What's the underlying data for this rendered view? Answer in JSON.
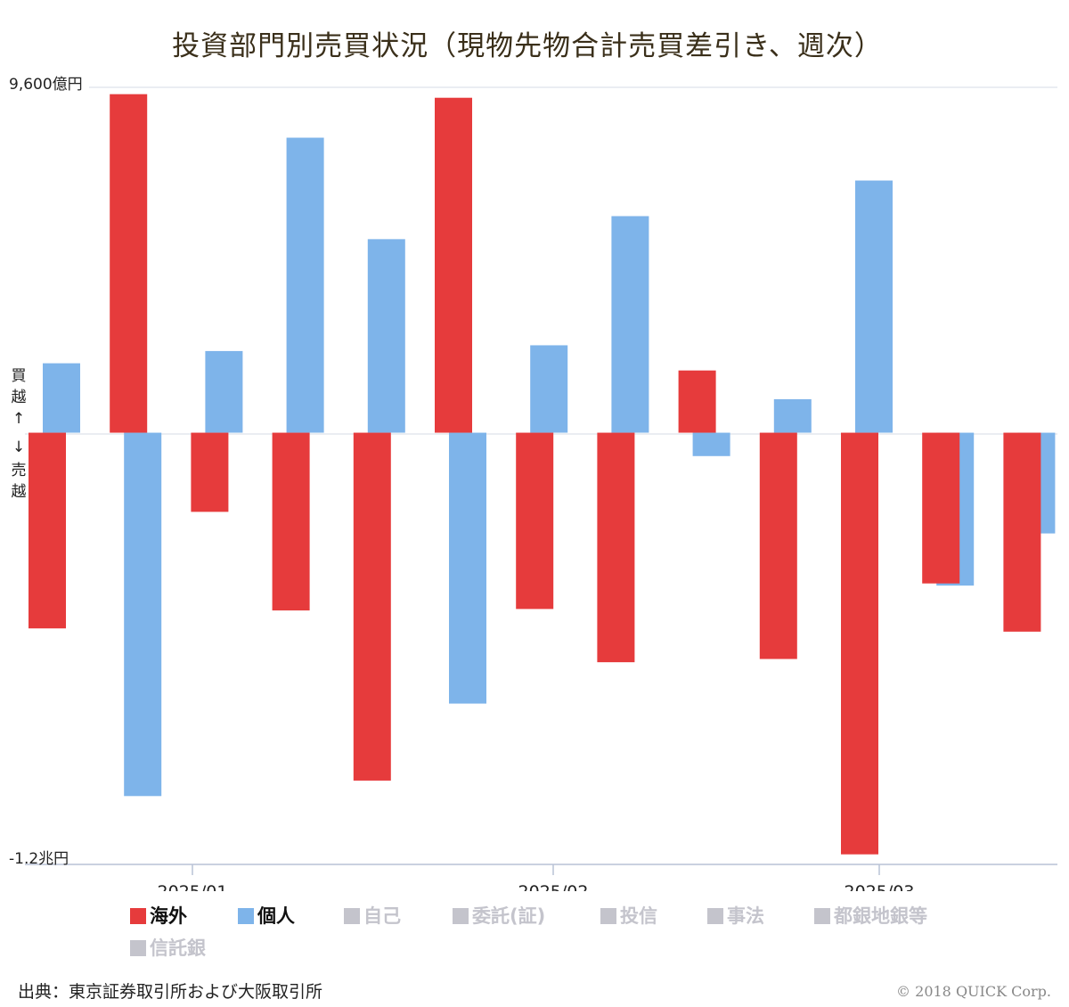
{
  "chart_data": {
    "type": "bar",
    "title": "投資部門別売買状況（現物先物合計売買差引き、週次）",
    "ylabel_top": "9,600億円",
    "ylabel_bottom": "-1.2兆円",
    "ylim": [
      -12000,
      9600
    ],
    "unit": "億円",
    "buy_label": "買越",
    "buy_arrow": "↑",
    "sell_arrow": "↓",
    "sell_label": "売越",
    "x_ticks": [
      "2025/01",
      "2025/02",
      "2025/03"
    ],
    "series": [
      {
        "name": "海外",
        "color": "#e63b3c",
        "values": [
          -5440,
          9410,
          -2200,
          -4940,
          -9670,
          9310,
          -4900,
          -6380,
          1730,
          -6290,
          -11720,
          -4190,
          -5530
        ]
      },
      {
        "name": "個人",
        "color": "#7eb4ea",
        "values": [
          1930,
          -10100,
          2270,
          8200,
          5380,
          -7530,
          2430,
          6020,
          -650,
          930,
          7010,
          -4250,
          -2800
        ]
      }
    ],
    "legend": [
      {
        "name": "海外",
        "active": true,
        "color": "#e63b3c"
      },
      {
        "name": "個人",
        "active": true,
        "color": "#7eb4ea"
      },
      {
        "name": "自己",
        "active": false,
        "color": "#c4c4cc"
      },
      {
        "name": "委託(証)",
        "active": false,
        "color": "#c4c4cc"
      },
      {
        "name": "投信",
        "active": false,
        "color": "#c4c4cc"
      },
      {
        "name": "事法",
        "active": false,
        "color": "#c4c4cc"
      },
      {
        "name": "都銀地銀等",
        "active": false,
        "color": "#c4c4cc"
      },
      {
        "name": "信託銀",
        "active": false,
        "color": "#c4c4cc"
      }
    ]
  },
  "footer": {
    "source": "出典：東京証券取引所および大阪取引所",
    "copyright": "© 2018 QUICK Corp."
  }
}
